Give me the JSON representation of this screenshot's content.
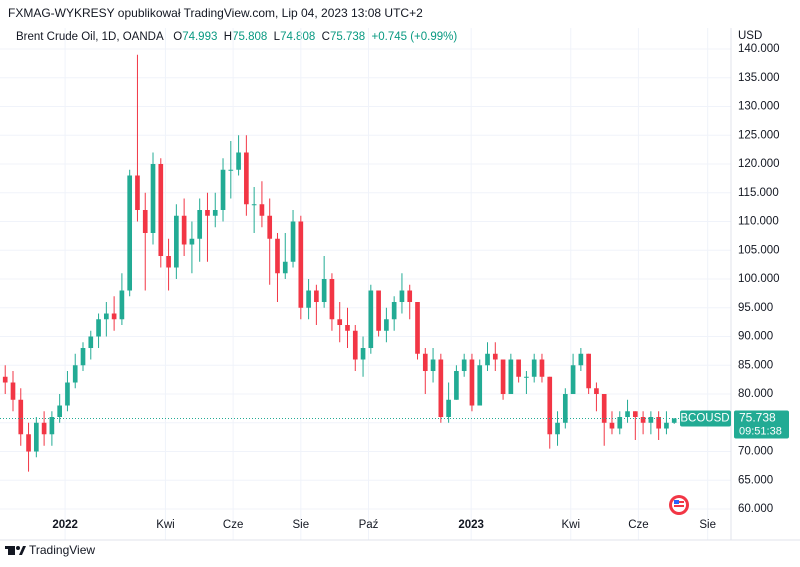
{
  "header": {
    "publisher": "FXMAG-WYKRESY opublikował TradingView.com, Lip 04, 2023 13:08 UTC+2"
  },
  "chart_data": {
    "type": "candlestick",
    "symbol": "Brent Crude Oil, 1D, OANDA",
    "ohlc_labels": [
      "O",
      "H",
      "L",
      "C"
    ],
    "change": "+0.745 (+0.99%)",
    "currency": "USD",
    "ticker": "BCOUSD",
    "countdown": "09:51:38",
    "up_color": "#22ab94",
    "down_color": "#f23645",
    "grid": true,
    "last_price_line": true,
    "xlim": [
      -0.67,
      93.3
    ],
    "xticks": [
      {
        "value": 7.7,
        "label": "2022"
      },
      {
        "value": 20.6,
        "label": "Kwi"
      },
      {
        "value": 29.3,
        "label": "Cze"
      },
      {
        "value": 38,
        "label": "Sie"
      },
      {
        "value": 46.7,
        "label": "Paź"
      },
      {
        "value": 59.9,
        "label": "2023"
      },
      {
        "value": 72.7,
        "label": "Kwi"
      },
      {
        "value": 81.4,
        "label": "Cze"
      },
      {
        "value": 90.3,
        "label": "Sie"
      }
    ],
    "ylim": [
      58.96,
      143.65
    ],
    "yticks": [
      {
        "value": 60,
        "label": "60.000"
      },
      {
        "value": 65,
        "label": "65.000"
      },
      {
        "value": 70,
        "label": "70.000"
      },
      {
        "value": 75,
        "label": "75.000"
      },
      {
        "value": 80,
        "label": "80.000"
      },
      {
        "value": 85,
        "label": "85.000"
      },
      {
        "value": 90,
        "label": "90.000"
      },
      {
        "value": 95,
        "label": "95.000"
      },
      {
        "value": 100,
        "label": "100.000"
      },
      {
        "value": 105,
        "label": "105.000"
      },
      {
        "value": 110,
        "label": "110.000"
      },
      {
        "value": 115,
        "label": "115.000"
      },
      {
        "value": 120,
        "label": "120.000"
      },
      {
        "value": 125,
        "label": "125.000"
      },
      {
        "value": 130,
        "label": "130.000"
      },
      {
        "value": 135,
        "label": "135.000"
      },
      {
        "value": 140,
        "label": "140.000"
      }
    ],
    "open": [
      83,
      82,
      79,
      73,
      70,
      75,
      73,
      76,
      78,
      82,
      85,
      88,
      90,
      93,
      94,
      93,
      98,
      118,
      112,
      108,
      120,
      104,
      102,
      111,
      106,
      107,
      112,
      111,
      112,
      119,
      119,
      122,
      113,
      113,
      111,
      107,
      101,
      103,
      110,
      95,
      98,
      96,
      100,
      93,
      92,
      91,
      86,
      88,
      98,
      91,
      93,
      96,
      98,
      96,
      87,
      84,
      86,
      76,
      79,
      84,
      86,
      78,
      85,
      87,
      86,
      80,
      86,
      83,
      83,
      86,
      83,
      73,
      75,
      80,
      85,
      87,
      81,
      80,
      75,
      74,
      76,
      77,
      76,
      75,
      76,
      74,
      74.993
    ],
    "high": [
      85,
      84,
      81,
      75,
      76,
      77,
      77,
      80,
      84,
      87,
      89,
      91,
      94,
      96,
      97,
      101,
      119,
      139,
      115,
      122,
      121,
      107,
      113,
      114,
      110,
      114,
      115,
      115,
      121,
      124,
      125,
      125,
      116,
      117,
      114,
      108,
      108,
      112,
      111,
      100,
      99,
      104,
      101,
      96,
      95,
      92,
      90,
      99,
      98,
      95,
      97,
      101,
      99,
      96,
      88,
      88,
      87,
      82,
      85,
      87,
      87,
      86,
      89,
      89,
      86,
      87,
      86,
      84,
      87,
      87,
      83,
      77,
      81,
      87,
      88,
      87,
      82,
      80,
      77,
      77,
      79,
      77,
      77,
      77,
      77,
      77,
      75.808
    ],
    "low": [
      80,
      77,
      71,
      66.5,
      69,
      71,
      71,
      75,
      77,
      81,
      84,
      86,
      88,
      90,
      91,
      92,
      97,
      110,
      98,
      106,
      102,
      98,
      100,
      104,
      101,
      103,
      103,
      109,
      110,
      114,
      118,
      111,
      108,
      109,
      99,
      96,
      100,
      102,
      93,
      93,
      92,
      95,
      91,
      89,
      88,
      84,
      83,
      87,
      90,
      89,
      91,
      94,
      93,
      86,
      80,
      82,
      75,
      75,
      79,
      83,
      77,
      78,
      84,
      84,
      79,
      80,
      82,
      80,
      82,
      82,
      70.5,
      71,
      74,
      80,
      84,
      80,
      77,
      71,
      73,
      73,
      75,
      72,
      73,
      73,
      72,
      73,
      74.808
    ],
    "close": [
      82,
      79,
      73,
      70,
      75,
      73,
      76,
      78,
      82,
      85,
      88,
      90,
      93,
      94,
      93,
      98,
      118,
      112,
      108,
      120,
      104,
      102,
      111,
      106,
      107,
      112,
      111,
      112,
      119,
      119,
      122,
      113,
      113,
      111,
      107,
      101,
      103,
      110,
      95,
      98,
      96,
      100,
      93,
      92,
      91,
      86,
      88,
      98,
      91,
      93,
      96,
      98,
      96,
      87,
      84,
      86,
      76,
      79,
      84,
      86,
      78,
      85,
      87,
      86,
      80,
      86,
      83,
      83,
      86,
      83,
      73,
      75,
      80,
      85,
      87,
      81,
      80,
      75,
      74,
      76,
      77,
      76,
      75,
      76,
      74,
      75,
      75.738
    ]
  },
  "footer": {
    "brand": "TradingView"
  }
}
